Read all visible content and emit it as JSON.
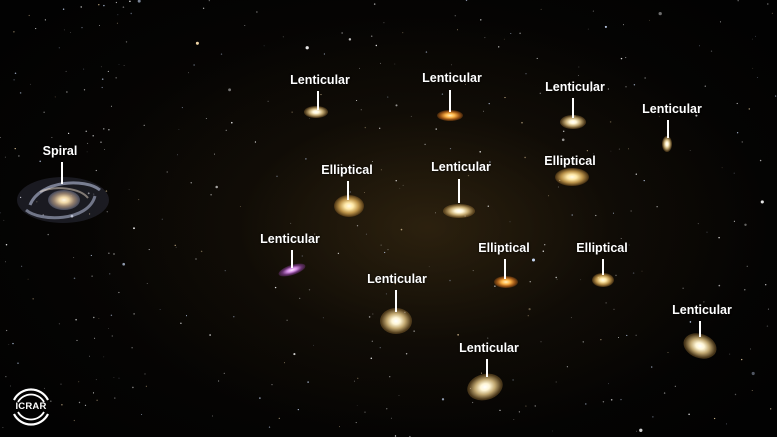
{
  "labels": {
    "spiral": "Spiral",
    "lenticular": "Lenticular",
    "elliptical": "Elliptical"
  },
  "logo": {
    "text": "ICRAR"
  },
  "colors": {
    "background": "#050403",
    "label": "#ffffff"
  }
}
